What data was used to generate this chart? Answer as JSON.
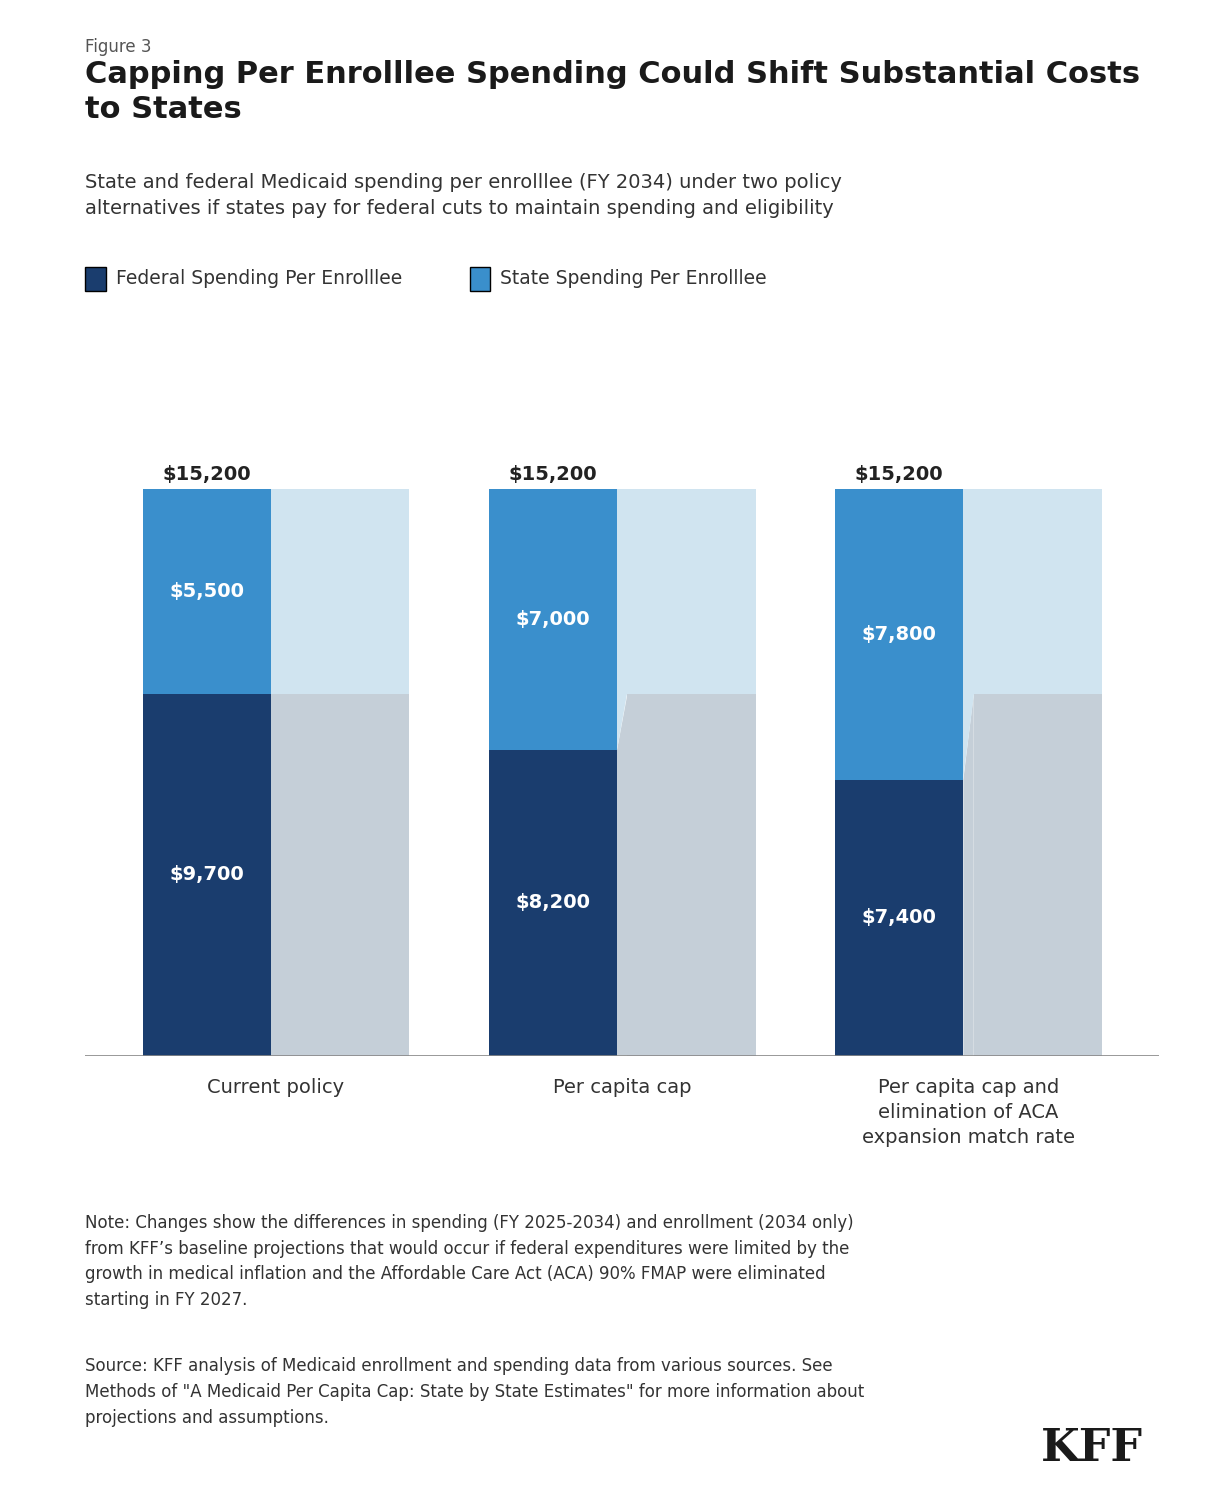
{
  "figure_label": "Figure 3",
  "title": "Capping Per Enrolllee Spending Could Shift Substantial Costs\nto States",
  "subtitle": "State and federal Medicaid spending per enrolllee (FY 2034) under two policy\nalternatives if states pay for federal cuts to maintain spending and eligibility",
  "legend_federal": "Federal Spending Per Enrolllee",
  "legend_state": "State Spending Per Enrolllee",
  "categories": [
    "Current policy",
    "Per capita cap",
    "Per capita cap and\nelimination of ACA\nexpansion match rate"
  ],
  "federal_values": [
    9700,
    8200,
    7400
  ],
  "state_values": [
    5500,
    7000,
    7800
  ],
  "ghost_federal_values": [
    9700,
    9700,
    9700
  ],
  "ghost_state_values": [
    5500,
    5500,
    5500
  ],
  "totals": [
    15200,
    15200,
    15200
  ],
  "federal_color": "#1a3d6e",
  "state_color": "#3a8fcc",
  "ghost_federal_color": "#c5cfd8",
  "ghost_state_color": "#d0e4f0",
  "note_text": "Note: Changes show the differences in spending (FY 2025-2034) and enrollment (2034 only)\nfrom KFF’s baseline projections that would occur if federal expenditures were limited by the\ngrowth in medical inflation and the Affordable Care Act (ACA) 90% FMAP were eliminated\nstarting in FY 2027.",
  "source_text": "Source: KFF analysis of Medicaid enrollment and spending data from various sources. See\nMethods of \"A Medicaid Per Capita Cap: State by State Estimates\" for more information about\nprojections and assumptions.",
  "background_color": "#ffffff",
  "text_color": "#333333",
  "ylim_max": 17000
}
